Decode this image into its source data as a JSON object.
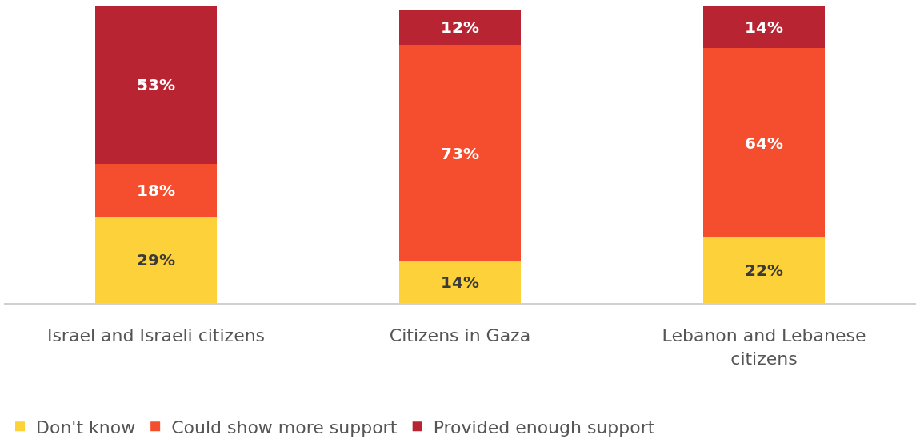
{
  "chart_data": {
    "type": "bar",
    "stacked": true,
    "categories": [
      "Israel and Israeli citizens",
      "Citizens in Gaza",
      "Lebanon and Lebanese citizens"
    ],
    "series": [
      {
        "name": "Don't know",
        "color": "#fdd13a",
        "values": [
          29,
          14,
          22
        ],
        "value_labels": [
          "29%",
          "14%",
          "22%"
        ]
      },
      {
        "name": "Could show more support",
        "color": "#f44e2e",
        "values": [
          18,
          73,
          64
        ],
        "value_labels": [
          "18%",
          "73%",
          "64%"
        ]
      },
      {
        "name": "Provided enough support",
        "color": "#b82432",
        "values": [
          53,
          12,
          14
        ],
        "value_labels": [
          "53%",
          "12%",
          "14%"
        ]
      }
    ],
    "legend": "bottom left",
    "tick_labels": "x"
  }
}
